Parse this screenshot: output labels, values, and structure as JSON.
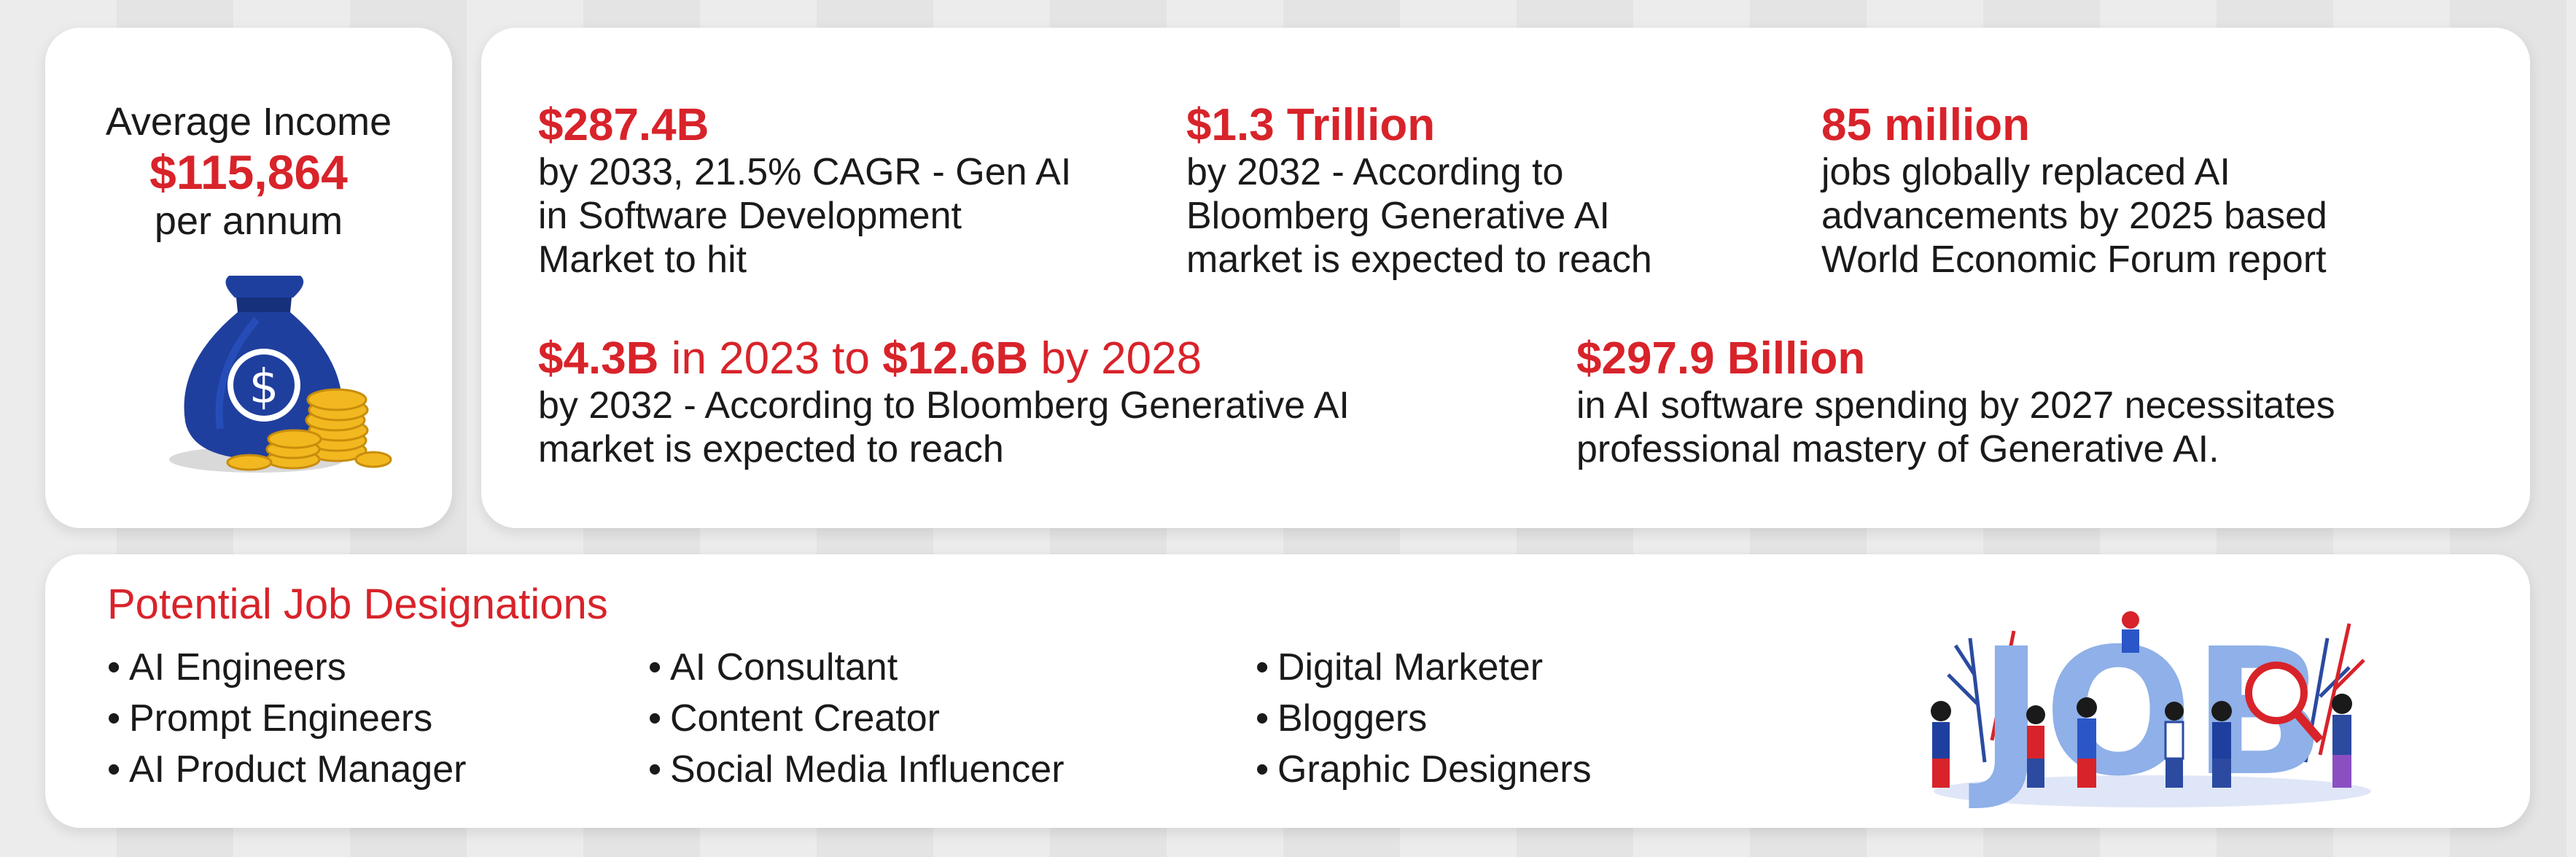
{
  "income": {
    "title": "Average Income",
    "value": "$115,864",
    "unit": "per annum",
    "icon": "money-bag-icon"
  },
  "stats": [
    {
      "headline": "$287.4B",
      "desc": [
        "by 2033, 21.5% CAGR - Gen AI",
        "in Software Development",
        "Market to hit"
      ]
    },
    {
      "headline": "$1.3 Trillion",
      "desc": [
        "by 2032 - According to",
        "Bloomberg Generative AI",
        "market is expected to reach"
      ]
    },
    {
      "headline": "85 million",
      "desc": [
        "jobs globally replaced AI",
        "advancements by 2025 based",
        "World Economic Forum report"
      ]
    },
    {
      "headline_parts": [
        "$4.3B",
        " in 2023 to ",
        "$12.6B",
        " by 2028"
      ],
      "desc": [
        "by 2032 - According to Bloomberg Generative AI",
        "market is expected to reach"
      ]
    },
    {
      "headline": "$297.9 Billion",
      "desc": [
        "in AI software spending by 2027 necessitates",
        "professional mastery of Generative AI."
      ]
    }
  ],
  "jobs": {
    "title": "Potential Job Designations",
    "bullet": "•",
    "columns": [
      [
        "AI Engineers",
        "Prompt Engineers",
        "AI Product Manager"
      ],
      [
        "AI Consultant",
        "Content Creator",
        "Social Media Influencer"
      ],
      [
        "Digital Marketer",
        "Bloggers",
        "Graphic Designers"
      ]
    ],
    "illustration_text": "JOB"
  },
  "colors": {
    "accent": "#d8232a",
    "text": "#1a1a1a",
    "card": "#ffffff",
    "bag": "#1f3f9e",
    "coin": "#f2b81f"
  }
}
